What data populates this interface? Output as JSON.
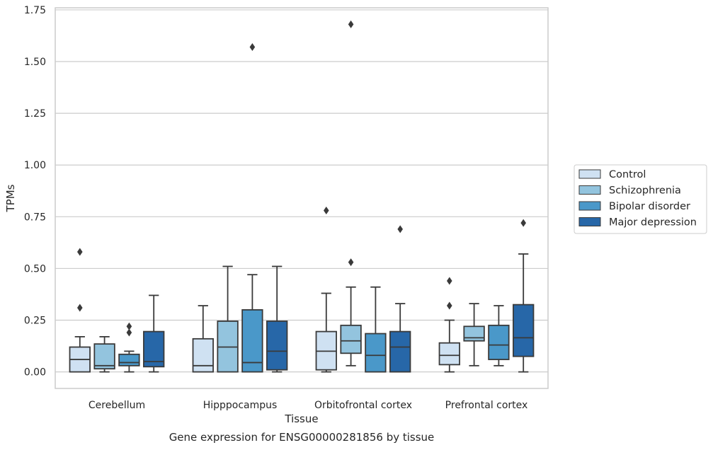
{
  "chart_data": {
    "type": "box",
    "title": "Gene expression for ENSG00000281856 by tissue",
    "xlabel": "Tissue",
    "ylabel": "TPMs",
    "ylim": [
      -0.08,
      1.76
    ],
    "yticks": [
      "0.00",
      "0.25",
      "0.50",
      "0.75",
      "1.00",
      "1.25",
      "1.50",
      "1.75"
    ],
    "grid": true,
    "legend_position": "right",
    "categories": [
      "Cerebellum",
      "Hipppocampus",
      "Orbitofrontal cortex",
      "Prefrontal cortex"
    ],
    "series": [
      {
        "name": "Control",
        "color": "#cfe1f2",
        "boxes": [
          {
            "q1": 0.0,
            "median": 0.06,
            "q3": 0.12,
            "whisker_low": 0.0,
            "whisker_high": 0.17,
            "outliers": [
              0.31,
              0.58
            ]
          },
          {
            "q1": 0.0,
            "median": 0.03,
            "q3": 0.16,
            "whisker_low": 0.0,
            "whisker_high": 0.32,
            "outliers": []
          },
          {
            "q1": 0.01,
            "median": 0.1,
            "q3": 0.195,
            "whisker_low": 0.0,
            "whisker_high": 0.38,
            "outliers": [
              0.78
            ]
          },
          {
            "q1": 0.035,
            "median": 0.08,
            "q3": 0.14,
            "whisker_low": 0.0,
            "whisker_high": 0.25,
            "outliers": [
              0.32,
              0.44
            ]
          }
        ]
      },
      {
        "name": "Schizophrenia",
        "color": "#93c4de",
        "boxes": [
          {
            "q1": 0.015,
            "median": 0.03,
            "q3": 0.135,
            "whisker_low": 0.0,
            "whisker_high": 0.17,
            "outliers": []
          },
          {
            "q1": 0.0,
            "median": 0.12,
            "q3": 0.245,
            "whisker_low": 0.0,
            "whisker_high": 0.51,
            "outliers": []
          },
          {
            "q1": 0.09,
            "median": 0.15,
            "q3": 0.225,
            "whisker_low": 0.03,
            "whisker_high": 0.41,
            "outliers": [
              0.53,
              1.68
            ]
          },
          {
            "q1": 0.15,
            "median": 0.165,
            "q3": 0.22,
            "whisker_low": 0.03,
            "whisker_high": 0.33,
            "outliers": []
          }
        ]
      },
      {
        "name": "Bipolar disorder",
        "color": "#4a98c9",
        "boxes": [
          {
            "q1": 0.03,
            "median": 0.045,
            "q3": 0.085,
            "whisker_low": 0.0,
            "whisker_high": 0.1,
            "outliers": [
              0.19,
              0.22
            ]
          },
          {
            "q1": 0.0,
            "median": 0.045,
            "q3": 0.3,
            "whisker_low": 0.0,
            "whisker_high": 0.47,
            "outliers": [
              1.57
            ]
          },
          {
            "q1": 0.0,
            "median": 0.08,
            "q3": 0.185,
            "whisker_low": 0.0,
            "whisker_high": 0.41,
            "outliers": []
          },
          {
            "q1": 0.06,
            "median": 0.13,
            "q3": 0.225,
            "whisker_low": 0.03,
            "whisker_high": 0.32,
            "outliers": []
          }
        ]
      },
      {
        "name": "Major depression",
        "color": "#2767a8",
        "boxes": [
          {
            "q1": 0.025,
            "median": 0.05,
            "q3": 0.195,
            "whisker_low": 0.0,
            "whisker_high": 0.37,
            "outliers": []
          },
          {
            "q1": 0.01,
            "median": 0.1,
            "q3": 0.245,
            "whisker_low": 0.0,
            "whisker_high": 0.51,
            "outliers": []
          },
          {
            "q1": 0.0,
            "median": 0.12,
            "q3": 0.195,
            "whisker_low": 0.0,
            "whisker_high": 0.33,
            "outliers": [
              0.69
            ]
          },
          {
            "q1": 0.075,
            "median": 0.165,
            "q3": 0.325,
            "whisker_low": 0.0,
            "whisker_high": 0.57,
            "outliers": [
              0.72
            ]
          }
        ]
      }
    ]
  }
}
